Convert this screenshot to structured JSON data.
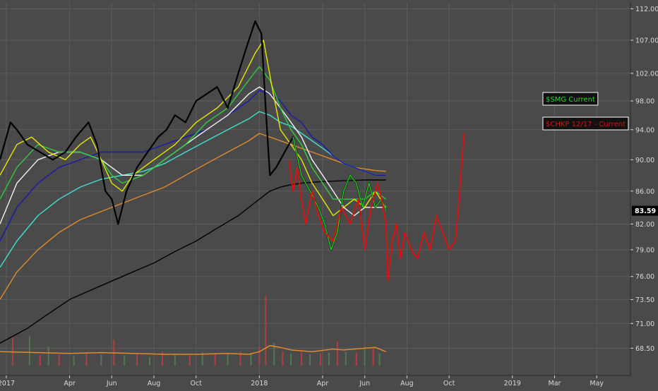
{
  "chart_data": {
    "type": "line",
    "title": "",
    "xlabel": "",
    "ylabel": "",
    "colors": {
      "background": "#4a4a4a",
      "grid": "#5c5c5c",
      "axis_text": "#d8d8d8",
      "price": "#000000",
      "price_overlay": "#22dd22",
      "sma_yellow": "#e6e600",
      "sma_green": "#2ecc40",
      "sma_white": "#f2f2f2",
      "sma_blue": "#1a1aa8",
      "sma_cyan": "#40e0d0",
      "sma_orange": "#e08a2c",
      "sma_black": "#000000",
      "comparison": "#e01010",
      "volume_red": "#b04040",
      "volume_green": "#4f7a4f",
      "volume_ma": "#e08a2c",
      "price_tag": "#000000"
    },
    "x_ticks": [
      "2017",
      "Apr",
      "Jun",
      "Aug",
      "Oct",
      "2018",
      "Apr",
      "Jun",
      "Aug",
      "Oct",
      "2019",
      "Mar",
      "May"
    ],
    "x_tick_months": [
      0,
      3,
      5,
      7,
      9,
      12,
      15,
      17,
      19,
      21,
      24,
      26,
      28
    ],
    "x_range_months": [
      -0.3,
      29.6
    ],
    "y_ticks": [
      "112.00",
      "107.00",
      "102.00",
      "98.00",
      "94.00",
      "90.00",
      "86.00",
      "82.00",
      "79.00",
      "76.00",
      "73.50",
      "71.00",
      "68.50"
    ],
    "y_range": [
      67.0,
      112.5
    ],
    "y_scale": "log",
    "last_price": "83.59",
    "legend": [
      {
        "label": "$SMG Current",
        "color": "#22dd22"
      },
      {
        "label": "$CHKP 12/17 - Current",
        "color": "#e01010"
      }
    ],
    "series": [
      {
        "name": "$SMG Current",
        "role": "price",
        "x_months": [
          -0.3,
          0.2,
          0.5,
          1.0,
          1.6,
          2.2,
          2.8,
          3.3,
          3.9,
          4.3,
          4.7,
          5.0,
          5.3,
          5.7,
          6.2,
          6.7,
          7.2,
          7.6,
          8.0,
          8.5,
          9.0,
          9.5,
          10.0,
          10.5,
          11.0,
          11.4,
          11.8,
          12.1,
          12.3,
          12.5,
          12.8,
          13.2,
          13.6,
          14.0,
          14.4,
          14.8,
          15.1,
          15.4,
          15.7,
          16.0,
          16.3,
          16.6,
          16.9,
          17.2,
          17.5,
          17.8,
          18.0
        ],
        "values": [
          90,
          95,
          94,
          92,
          91,
          90,
          91,
          93,
          95,
          92,
          86,
          85,
          82,
          86,
          89,
          91,
          93,
          94,
          96,
          95,
          98,
          99,
          100,
          97,
          102,
          106,
          110,
          108,
          97,
          88,
          89,
          91,
          93,
          88,
          86,
          84,
          82,
          79,
          81,
          86,
          88,
          87,
          84,
          87,
          84,
          85,
          83.59
        ]
      },
      {
        "name": "SMA yellow",
        "x_months": [
          -0.3,
          0.5,
          1.2,
          2.0,
          2.8,
          3.5,
          4.0,
          4.5,
          5.0,
          5.5,
          6.0,
          7.0,
          8.0,
          9.0,
          10.0,
          11.0,
          11.8,
          12.2,
          12.6,
          13.0,
          13.5,
          14.0,
          14.5,
          15.0,
          15.5,
          16.0,
          16.5,
          17.0,
          17.5,
          18.0
        ],
        "values": [
          88,
          92,
          93,
          91,
          90,
          92,
          93,
          90,
          87,
          86,
          88,
          90,
          92,
          95,
          97,
          100,
          105,
          107,
          100,
          94,
          92,
          90,
          87,
          85,
          83,
          84,
          85,
          84,
          86,
          84
        ]
      },
      {
        "name": "SMA green",
        "x_months": [
          -0.3,
          0.5,
          1.5,
          2.5,
          3.5,
          4.5,
          5.0,
          5.5,
          6.5,
          7.5,
          8.5,
          9.5,
          10.5,
          11.5,
          12.0,
          12.5,
          13.0,
          13.5,
          14.0,
          14.5,
          15.0,
          15.5,
          16.0,
          16.5,
          17.0,
          17.5,
          18.0
        ],
        "values": [
          85,
          89,
          92,
          91,
          91,
          90,
          88,
          87,
          88,
          90,
          92,
          95,
          97,
          101,
          103,
          101,
          97,
          94,
          92,
          89,
          87,
          85,
          85,
          85,
          85,
          86,
          85
        ]
      },
      {
        "name": "SMA white",
        "x_months": [
          -0.3,
          0.5,
          1.5,
          2.5,
          3.5,
          4.5,
          5.5,
          6.5,
          7.5,
          8.5,
          9.5,
          10.5,
          11.5,
          12.0,
          12.5,
          13.0,
          13.5,
          14.0,
          14.5,
          15.0,
          15.5,
          16.0,
          16.5,
          17.0,
          17.5,
          18.0
        ],
        "values": [
          82,
          87,
          90,
          91,
          91,
          90,
          88,
          88,
          90,
          92,
          94,
          96,
          99,
          100,
          99,
          97,
          95,
          93,
          90,
          88,
          86,
          84,
          83,
          84,
          84,
          84
        ]
      },
      {
        "name": "SMA blue",
        "x_months": [
          -0.3,
          0.5,
          1.5,
          2.5,
          3.5,
          4.5,
          5.5,
          6.5,
          7.5,
          8.5,
          9.5,
          10.5,
          11.5,
          12.0,
          12.5,
          13.0,
          13.5,
          14.0,
          14.5,
          15.0,
          15.5,
          16.0,
          16.5,
          17.0,
          17.5,
          18.0
        ],
        "values": [
          80,
          84,
          87,
          89,
          90,
          91,
          91,
          91,
          92,
          93,
          94,
          96,
          98,
          99.5,
          99,
          98,
          96,
          95,
          93,
          92,
          90.5,
          89.5,
          89,
          88.5,
          88,
          88
        ]
      },
      {
        "name": "SMA cyan",
        "x_months": [
          -0.3,
          0.5,
          1.5,
          2.5,
          3.5,
          4.5,
          5.5,
          6.5,
          7.5,
          8.5,
          9.5,
          10.5,
          11.5,
          12.0,
          12.5,
          13.0,
          13.5,
          14.0,
          14.5,
          15.0,
          15.5,
          16.0,
          16.5,
          17.0,
          17.5,
          18.0
        ],
        "values": [
          77,
          80,
          83,
          85,
          86.5,
          87.5,
          88,
          88.5,
          89.5,
          91,
          92.5,
          94,
          95.5,
          96.5,
          96,
          95,
          94.5,
          93.5,
          92.5,
          91.5,
          90.5,
          89.5,
          89,
          88.5,
          88,
          88
        ]
      },
      {
        "name": "SMA orange",
        "x_months": [
          -0.3,
          0.5,
          1.5,
          2.5,
          3.5,
          4.5,
          5.5,
          6.5,
          7.5,
          8.5,
          9.5,
          10.5,
          11.5,
          12.0,
          12.5,
          13.0,
          13.5,
          14.0,
          14.5,
          15.0,
          15.5,
          16.0,
          16.5,
          17.0,
          17.5,
          18.0
        ],
        "values": [
          73.5,
          76.5,
          79,
          81,
          82.5,
          83.5,
          84.5,
          85.5,
          86.5,
          88,
          89.5,
          91,
          92.5,
          93.5,
          93,
          92.5,
          92,
          91.5,
          91,
          90.5,
          90,
          89.5,
          89,
          88.8,
          88.6,
          88.5
        ]
      },
      {
        "name": "SMA black",
        "x_months": [
          -0.3,
          1.0,
          2.0,
          3.0,
          4.0,
          5.0,
          6.0,
          7.0,
          8.0,
          9.0,
          10.0,
          11.0,
          12.0,
          12.5,
          13.0,
          13.5,
          14.0,
          15.0,
          16.0,
          17.0,
          17.5,
          18.0
        ],
        "values": [
          69,
          70.5,
          72,
          73.5,
          74.5,
          75.5,
          76.5,
          77.5,
          78.8,
          80,
          81.5,
          83,
          85,
          86,
          86.5,
          86.8,
          87,
          87.2,
          87.3,
          87.4,
          87.4,
          87.4
        ]
      },
      {
        "name": "$CHKP 12/17 - Current",
        "role": "comparison",
        "x_months": [
          13.4,
          13.6,
          13.8,
          14.0,
          14.2,
          14.5,
          14.8,
          15.1,
          15.5,
          15.9,
          16.3,
          16.7,
          17.0,
          17.3,
          17.6,
          17.8,
          18.0,
          18.1,
          18.3,
          18.5,
          18.7,
          18.9,
          19.2,
          19.5,
          19.8,
          20.1,
          20.4,
          20.7,
          21.0,
          21.3,
          21.5,
          21.7
        ],
        "values": [
          90,
          86,
          89,
          85,
          82,
          86,
          83,
          81,
          80,
          84,
          82,
          85,
          79,
          84,
          87,
          85,
          82,
          75.5,
          80,
          82,
          78,
          81,
          79,
          78,
          81,
          79,
          83,
          81,
          79,
          80,
          86,
          93.5
        ]
      }
    ],
    "volume": {
      "x_months": [
        0.3,
        1.1,
        1.6,
        2.0,
        2.5,
        3.2,
        3.8,
        4.5,
        5.1,
        5.6,
        6.2,
        6.8,
        7.4,
        8.0,
        8.7,
        9.3,
        9.9,
        10.5,
        11.1,
        11.6,
        12.0,
        12.3,
        12.7,
        13.1,
        13.5,
        14.0,
        14.4,
        14.9,
        15.3,
        15.7,
        16.1,
        16.6,
        17.0,
        17.4,
        17.7
      ],
      "values": [
        3.2,
        3.4,
        1.2,
        2.2,
        1.3,
        1.1,
        1.4,
        1.3,
        3.0,
        1.2,
        1.4,
        1.0,
        1.6,
        1.3,
        1.2,
        1.5,
        1.3,
        1.4,
        1.6,
        1.4,
        2.2,
        8.0,
        2.6,
        1.6,
        1.4,
        1.6,
        1.3,
        1.4,
        1.5,
        2.8,
        1.6,
        1.5,
        2.2,
        2.0,
        1.4
      ],
      "up": [
        false,
        true,
        false,
        true,
        false,
        true,
        false,
        true,
        false,
        true,
        false,
        true,
        false,
        true,
        false,
        true,
        false,
        true,
        false,
        true,
        false,
        false,
        true,
        false,
        true,
        false,
        true,
        false,
        true,
        false,
        true,
        false,
        true,
        false,
        true
      ],
      "ma_x_months": [
        -0.3,
        1.5,
        3.0,
        4.5,
        6.0,
        7.5,
        9.0,
        10.5,
        11.5,
        12.0,
        12.5,
        13.0,
        13.5,
        14.5,
        15.5,
        16.0,
        16.5,
        17.0,
        17.5,
        18.0
      ],
      "ma_values": [
        1.6,
        1.5,
        1.4,
        1.5,
        1.4,
        1.3,
        1.3,
        1.4,
        1.3,
        1.6,
        2.3,
        2.1,
        1.8,
        1.6,
        1.9,
        1.8,
        1.9,
        2.0,
        2.1,
        1.6
      ],
      "max_value": 10.0
    }
  }
}
